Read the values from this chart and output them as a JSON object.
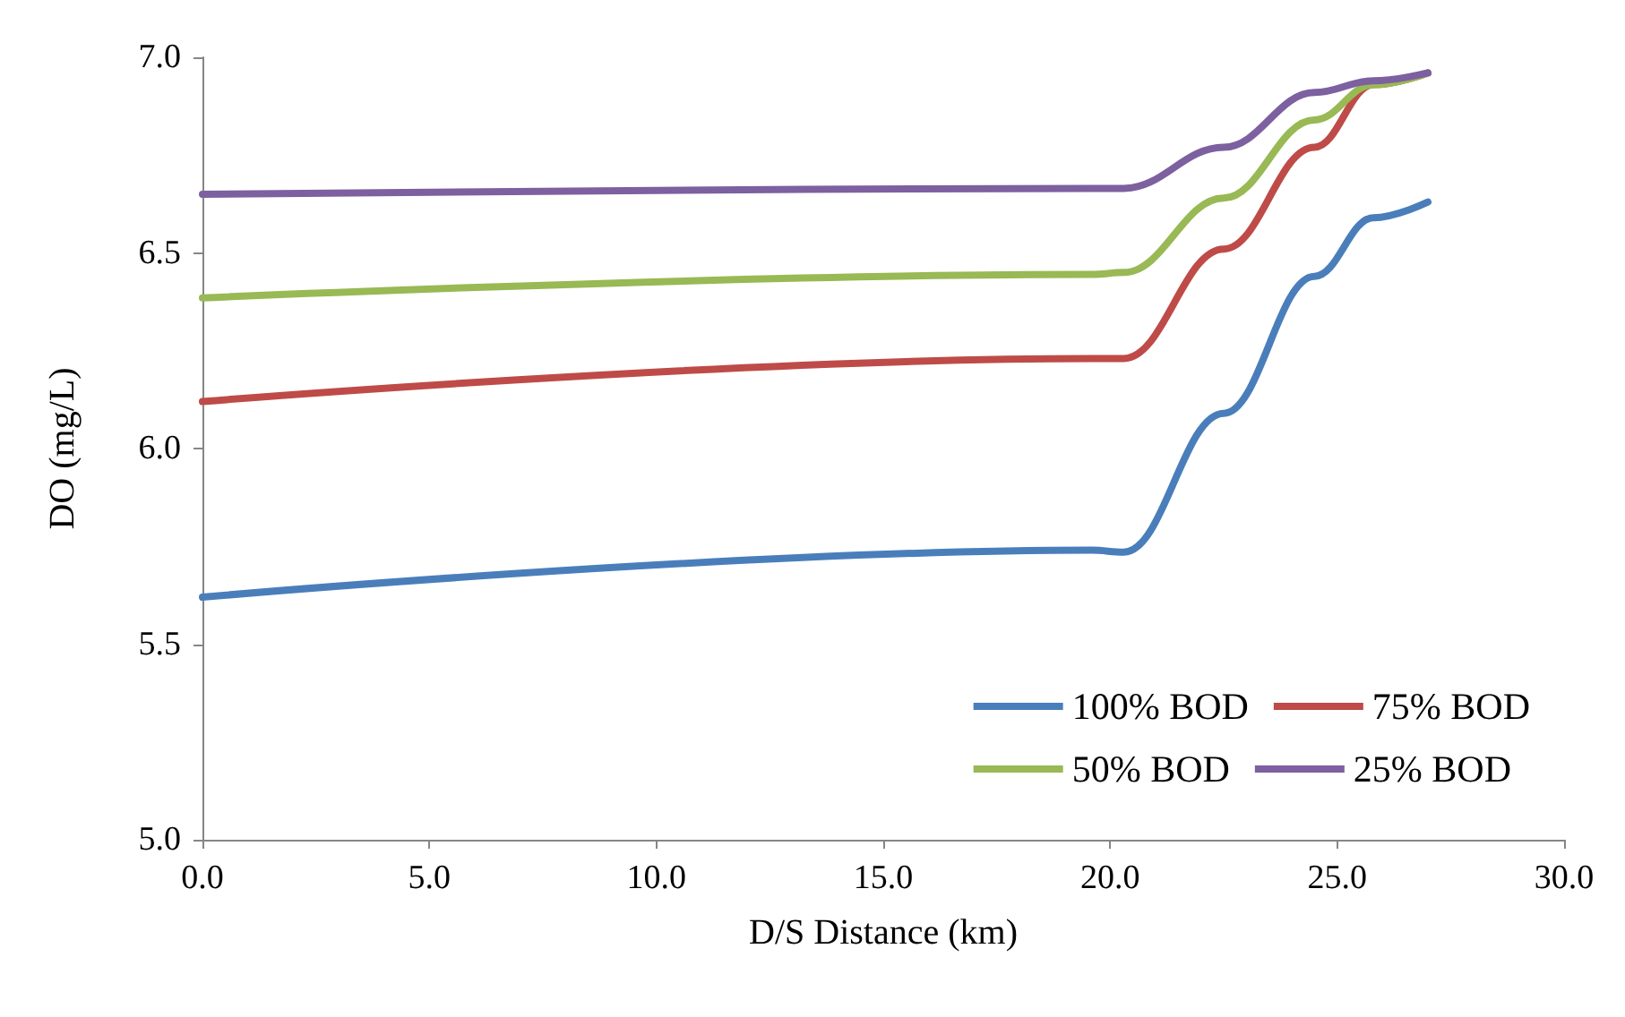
{
  "chart_data": {
    "type": "line",
    "xlabel": "D/S Distance (km)",
    "ylabel": "DO (mg/L)",
    "x": [
      0,
      19.6,
      20.3,
      22.5,
      24.5,
      25.8,
      27
    ],
    "series": [
      {
        "name": "100% BOD",
        "color": "#4a7ebb",
        "values": [
          5.62,
          5.74,
          5.735,
          6.09,
          6.44,
          6.59,
          6.63
        ]
      },
      {
        "name": "75% BOD",
        "color": "#be4b48",
        "values": [
          6.12,
          6.23,
          6.23,
          6.51,
          6.77,
          6.93,
          6.96
        ]
      },
      {
        "name": "50% BOD",
        "color": "#98b954",
        "values": [
          6.385,
          6.445,
          6.45,
          6.64,
          6.84,
          6.93,
          6.96
        ]
      },
      {
        "name": "25% BOD",
        "color": "#7d60a0",
        "values": [
          6.65,
          6.665,
          6.665,
          6.77,
          6.91,
          6.94,
          6.96
        ]
      }
    ],
    "xlim": [
      0,
      30
    ],
    "xticks": [
      {
        "value": 0,
        "label": "0.0"
      },
      {
        "value": 5,
        "label": "5.0"
      },
      {
        "value": 10,
        "label": "10.0"
      },
      {
        "value": 15,
        "label": "15.0"
      },
      {
        "value": 20,
        "label": "20.0"
      },
      {
        "value": 25,
        "label": "25.0"
      },
      {
        "value": 30,
        "label": "30.0"
      }
    ],
    "ylim": [
      5,
      7
    ],
    "yticks": [
      {
        "value": 5,
        "label": "5.0"
      },
      {
        "value": 5.5,
        "label": "5.5"
      },
      {
        "value": 6,
        "label": "6.0"
      },
      {
        "value": 6.5,
        "label": "6.5"
      },
      {
        "value": 7,
        "label": "7.0"
      }
    ],
    "grid": false,
    "legend": "bottom right",
    "marker": "none",
    "line_style": "solid"
  }
}
